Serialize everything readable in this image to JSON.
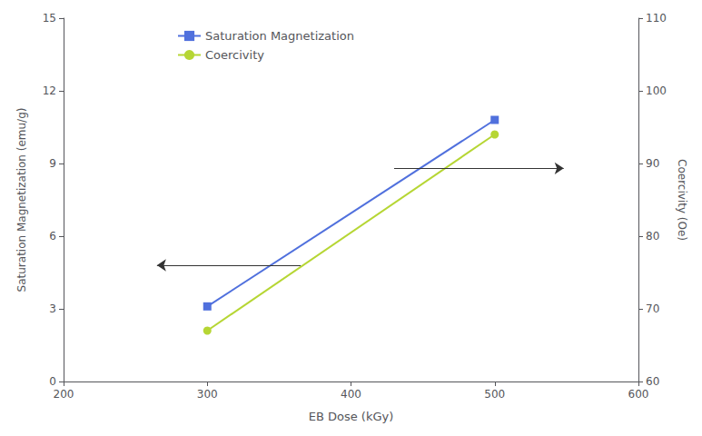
{
  "chart_data": {
    "type": "line",
    "xlabel": "EB Dose (kGy)",
    "ylabel": "Saturation Magnetization (emu/g)",
    "y2label": "Coercivity (Oe)",
    "x": [
      300,
      500
    ],
    "series": [
      {
        "name": "Saturation Magnetization",
        "values": [
          3.1,
          10.8
        ],
        "marker": "square"
      },
      {
        "name": "Coercivity",
        "values": [
          67,
          94
        ],
        "marker": "circle",
        "axis": "y2"
      }
    ],
    "xlim": [
      200,
      600
    ],
    "xticks": [
      200,
      300,
      400,
      500,
      600
    ],
    "ylim": [
      0,
      15
    ],
    "yticks": [
      0,
      3,
      6,
      9,
      12,
      15
    ],
    "y2lim": [
      60,
      110
    ],
    "y2ticks": [
      60,
      70,
      80,
      90,
      100,
      110
    ],
    "grid": false,
    "legend": "upper left",
    "annotations": [
      {
        "from": [
          365,
          4.8
        ],
        "to": [
          265,
          4.8
        ]
      },
      {
        "from": [
          430,
          8.8
        ],
        "to": [
          548,
          8.8
        ]
      }
    ]
  }
}
